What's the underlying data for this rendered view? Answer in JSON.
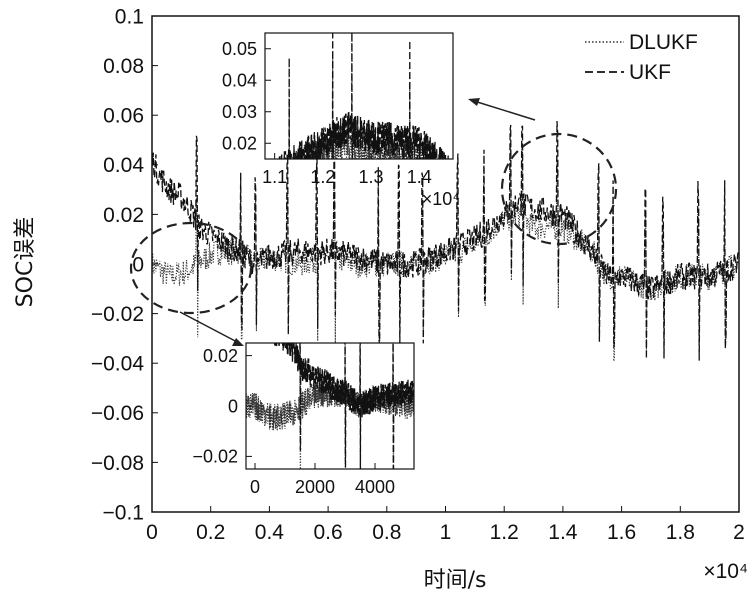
{
  "chart_data": {
    "type": "line",
    "title": "",
    "xlabel": "时间/s",
    "ylabel": "SOC误差",
    "x_multiplier": "×10⁴",
    "xlim": [
      0,
      20000
    ],
    "ylim": [
      -0.1,
      0.1
    ],
    "x_ticks": [
      0,
      2000,
      4000,
      6000,
      8000,
      10000,
      12000,
      14000,
      16000,
      18000,
      20000
    ],
    "x_tick_labels": [
      "0",
      "0.2",
      "0.4",
      "0.6",
      "0.8",
      "1",
      "1.2",
      "1.4",
      "1.6",
      "1.8",
      "2"
    ],
    "y_ticks": [
      0.1,
      0.08,
      0.06,
      0.04,
      0.02,
      0,
      -0.02,
      -0.04,
      -0.06,
      -0.08,
      -0.1
    ],
    "y_tick_labels": [
      "0.1",
      "0.08",
      "0.06",
      "0.04",
      "0.02",
      "0",
      "−0.02",
      "−0.04",
      "−0.06",
      "−0.08",
      "−0.1"
    ],
    "legend_position": "top-right",
    "grid": false,
    "series": [
      {
        "name": "DLUKF",
        "style": "dotted",
        "color": "#333333",
        "x": [
          0,
          600,
          1200,
          1500,
          2200,
          3000,
          3500,
          4000,
          5000,
          6000,
          7000,
          8000,
          9000,
          10000,
          11000,
          12000,
          12500,
          13000,
          14000,
          15000,
          15500,
          16000,
          17000,
          18000,
          19000,
          20000
        ],
        "y": [
          0.0,
          -0.005,
          -0.003,
          0.0,
          0.005,
          0.005,
          0.0,
          0.003,
          0.0,
          0.003,
          0.0,
          0.0,
          0.0,
          0.003,
          0.008,
          0.018,
          0.02,
          0.015,
          0.015,
          0.005,
          -0.005,
          -0.005,
          -0.01,
          -0.005,
          -0.005,
          0.0
        ]
      },
      {
        "name": "UKF",
        "style": "dashed",
        "color": "#111111",
        "x": [
          0,
          300,
          600,
          1000,
          1400,
          1600,
          2200,
          3000,
          3500,
          4000,
          5000,
          6000,
          7000,
          8000,
          9000,
          10000,
          11000,
          12000,
          12500,
          13000,
          14000,
          15000,
          15500,
          16000,
          17000,
          18000,
          19000,
          20000
        ],
        "y": [
          0.042,
          0.035,
          0.03,
          0.027,
          0.02,
          0.015,
          0.01,
          0.005,
          0.0,
          0.003,
          0.005,
          0.005,
          0.003,
          0.0,
          0.0,
          0.005,
          0.01,
          0.02,
          0.025,
          0.022,
          0.02,
          0.005,
          -0.005,
          -0.005,
          -0.01,
          -0.005,
          -0.005,
          0.0
        ]
      }
    ],
    "insets": [
      {
        "x_ticks": [
          11000,
          12000,
          13000,
          14000
        ],
        "x_tick_labels": [
          "1.1",
          "1.2",
          "1.3",
          "1.4"
        ],
        "x_multiplier": "×10⁴",
        "xlim": [
          10800,
          14700
        ],
        "y_ticks": [
          0.05,
          0.04,
          0.03,
          0.02
        ],
        "y_tick_labels": [
          "0.05",
          "0.04",
          "0.03",
          "0.02"
        ],
        "ylim": [
          0.015,
          0.055
        ]
      },
      {
        "x_ticks": [
          0,
          2000,
          4000
        ],
        "x_tick_labels": [
          "0",
          "2000",
          "4000"
        ],
        "xlim": [
          -300,
          5300
        ],
        "y_ticks": [
          0.02,
          0,
          -0.02
        ],
        "y_tick_labels": [
          "0.02",
          "0",
          "−0.02"
        ],
        "ylim": [
          -0.025,
          0.025
        ]
      }
    ]
  }
}
